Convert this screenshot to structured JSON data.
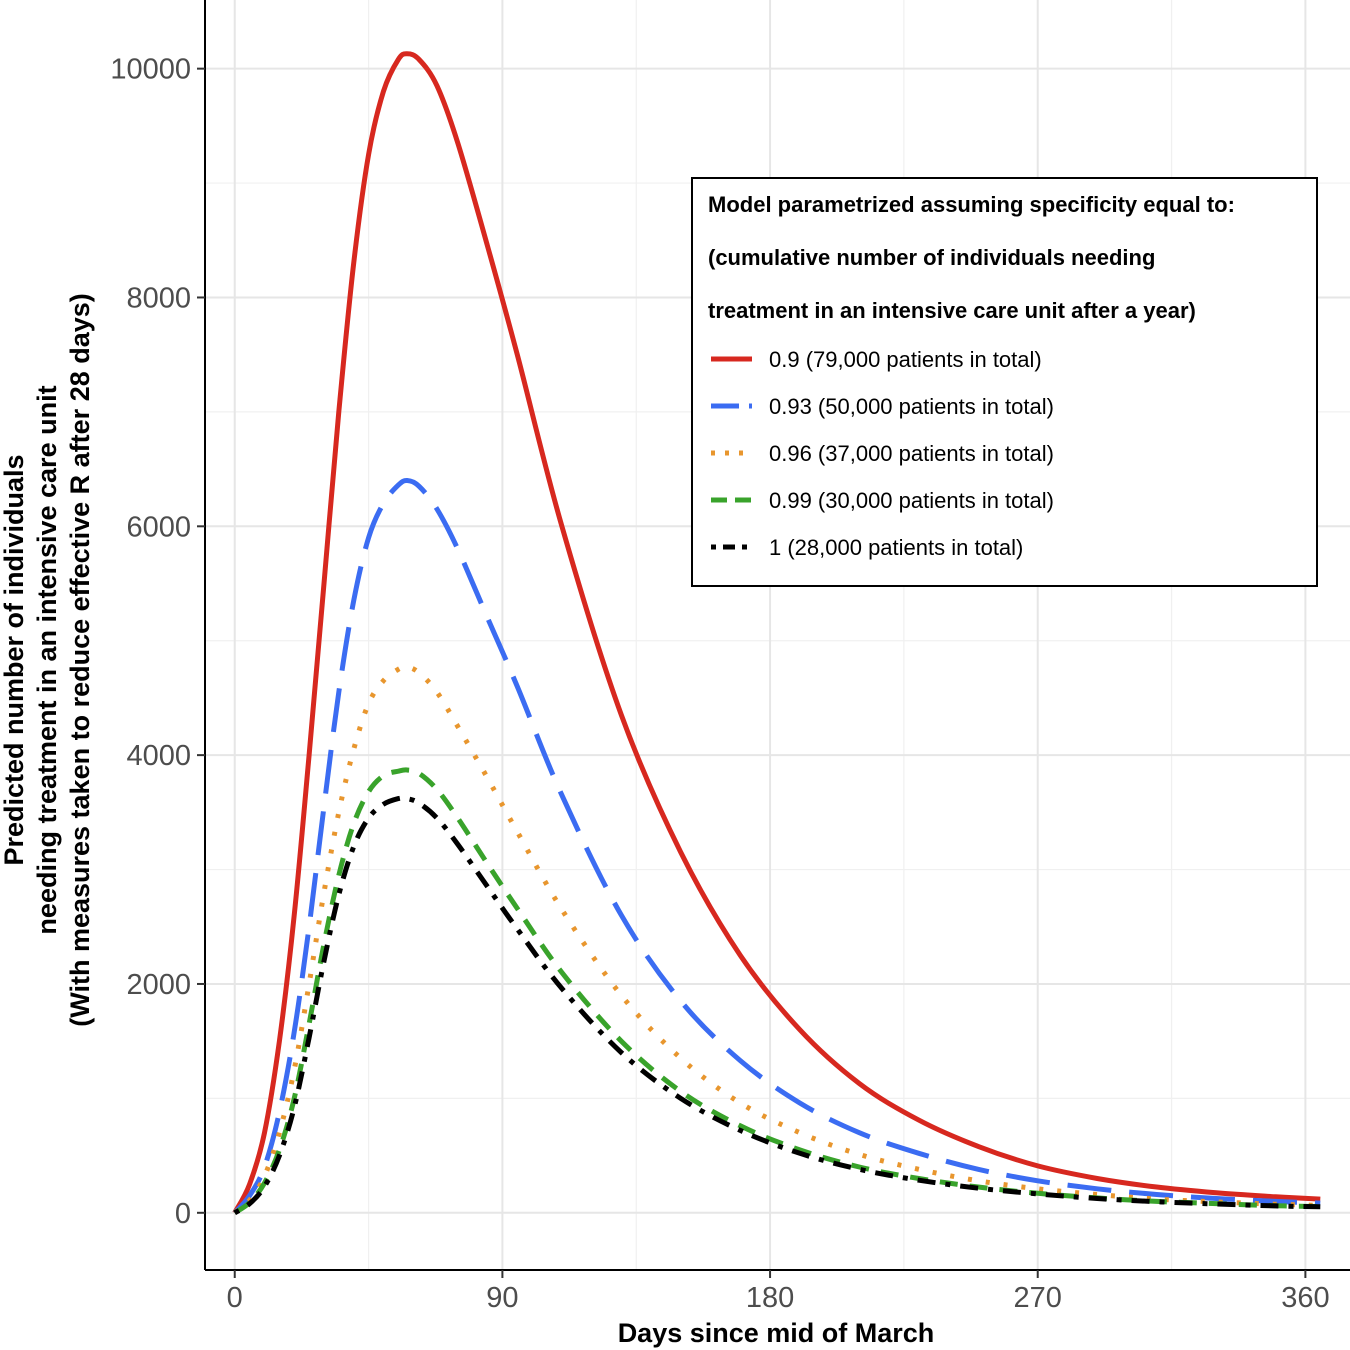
{
  "chart_data": {
    "type": "line",
    "xlabel": "Days since mid of March",
    "ylabel_lines": [
      "Predicted number of individuals",
      "needing treatment in an intensive care unit",
      "(With measures taken to reduce effective R after 28 days)"
    ],
    "xlim": [
      -10,
      375
    ],
    "ylim": [
      -500,
      10600
    ],
    "x_ticks": [
      0,
      90,
      180,
      270,
      360
    ],
    "x_tick_labels": [
      "0",
      "90",
      "180",
      "270",
      "360"
    ],
    "y_ticks": [
      0,
      2000,
      4000,
      6000,
      8000,
      10000
    ],
    "y_tick_labels": [
      "0",
      "2000",
      "4000",
      "6000",
      "8000",
      "10000"
    ],
    "grid": true,
    "legend": {
      "position": "top-right",
      "title_lines": [
        "Model parametrized assuming specificity equal to:",
        "(cumulative number of individuals needing",
        "treatment in an intensive care unit after a year)"
      ]
    },
    "series": [
      {
        "name": "0.9 (79,000 patients in total)",
        "color": "#d7281f",
        "dash": "solid",
        "points": [
          [
            0,
            0
          ],
          [
            5,
            250
          ],
          [
            10,
            700
          ],
          [
            15,
            1500
          ],
          [
            20,
            2600
          ],
          [
            25,
            4000
          ],
          [
            30,
            5500
          ],
          [
            35,
            7000
          ],
          [
            40,
            8300
          ],
          [
            45,
            9250
          ],
          [
            50,
            9800
          ],
          [
            55,
            10080
          ],
          [
            58,
            10130
          ],
          [
            62,
            10080
          ],
          [
            68,
            9850
          ],
          [
            75,
            9350
          ],
          [
            85,
            8450
          ],
          [
            95,
            7500
          ],
          [
            110,
            6000
          ],
          [
            130,
            4350
          ],
          [
            150,
            3150
          ],
          [
            170,
            2250
          ],
          [
            190,
            1600
          ],
          [
            210,
            1130
          ],
          [
            230,
            810
          ],
          [
            250,
            580
          ],
          [
            270,
            410
          ],
          [
            290,
            300
          ],
          [
            310,
            225
          ],
          [
            330,
            175
          ],
          [
            350,
            140
          ],
          [
            365,
            120
          ]
        ]
      },
      {
        "name": "0.93 (50,000 patients in total)",
        "color": "#3b6cf2",
        "dash": "long-dash",
        "points": [
          [
            0,
            0
          ],
          [
            5,
            150
          ],
          [
            10,
            400
          ],
          [
            15,
            880
          ],
          [
            20,
            1580
          ],
          [
            25,
            2500
          ],
          [
            30,
            3550
          ],
          [
            35,
            4550
          ],
          [
            40,
            5350
          ],
          [
            45,
            5900
          ],
          [
            50,
            6200
          ],
          [
            55,
            6360
          ],
          [
            58,
            6400
          ],
          [
            62,
            6350
          ],
          [
            68,
            6150
          ],
          [
            75,
            5800
          ],
          [
            85,
            5200
          ],
          [
            95,
            4600
          ],
          [
            110,
            3650
          ],
          [
            130,
            2600
          ],
          [
            150,
            1850
          ],
          [
            170,
            1330
          ],
          [
            190,
            960
          ],
          [
            210,
            700
          ],
          [
            230,
            520
          ],
          [
            250,
            380
          ],
          [
            270,
            280
          ],
          [
            290,
            210
          ],
          [
            310,
            160
          ],
          [
            330,
            125
          ],
          [
            350,
            100
          ],
          [
            365,
            85
          ]
        ]
      },
      {
        "name": "0.96 (37,000 patients in total)",
        "color": "#e8962e",
        "dash": "dotted",
        "points": [
          [
            0,
            0
          ],
          [
            5,
            110
          ],
          [
            10,
            320
          ],
          [
            15,
            700
          ],
          [
            20,
            1250
          ],
          [
            25,
            2000
          ],
          [
            30,
            2800
          ],
          [
            35,
            3500
          ],
          [
            40,
            4050
          ],
          [
            45,
            4450
          ],
          [
            50,
            4650
          ],
          [
            55,
            4750
          ],
          [
            58,
            4770
          ],
          [
            62,
            4720
          ],
          [
            68,
            4550
          ],
          [
            75,
            4250
          ],
          [
            85,
            3800
          ],
          [
            95,
            3330
          ],
          [
            110,
            2650
          ],
          [
            130,
            1900
          ],
          [
            150,
            1350
          ],
          [
            170,
            960
          ],
          [
            190,
            700
          ],
          [
            210,
            510
          ],
          [
            230,
            380
          ],
          [
            250,
            280
          ],
          [
            270,
            210
          ],
          [
            290,
            160
          ],
          [
            310,
            120
          ],
          [
            330,
            95
          ],
          [
            350,
            75
          ],
          [
            365,
            65
          ]
        ]
      },
      {
        "name": "0.99 (30,000 patients in total)",
        "color": "#39a32b",
        "dash": "dashed",
        "points": [
          [
            0,
            0
          ],
          [
            5,
            90
          ],
          [
            10,
            260
          ],
          [
            15,
            550
          ],
          [
            20,
            1000
          ],
          [
            25,
            1650
          ],
          [
            30,
            2350
          ],
          [
            35,
            2950
          ],
          [
            40,
            3400
          ],
          [
            45,
            3680
          ],
          [
            50,
            3820
          ],
          [
            55,
            3860
          ],
          [
            58,
            3870
          ],
          [
            62,
            3840
          ],
          [
            68,
            3700
          ],
          [
            75,
            3450
          ],
          [
            85,
            3050
          ],
          [
            95,
            2660
          ],
          [
            110,
            2100
          ],
          [
            130,
            1500
          ],
          [
            150,
            1060
          ],
          [
            170,
            760
          ],
          [
            190,
            550
          ],
          [
            210,
            400
          ],
          [
            230,
            300
          ],
          [
            250,
            225
          ],
          [
            270,
            170
          ],
          [
            290,
            130
          ],
          [
            310,
            100
          ],
          [
            330,
            80
          ],
          [
            350,
            62
          ],
          [
            365,
            55
          ]
        ]
      },
      {
        "name": "1 (28,000 patients in total)",
        "color": "#000000",
        "dash": "dot-dash",
        "points": [
          [
            0,
            0
          ],
          [
            5,
            80
          ],
          [
            10,
            230
          ],
          [
            15,
            500
          ],
          [
            20,
            920
          ],
          [
            25,
            1530
          ],
          [
            30,
            2200
          ],
          [
            35,
            2780
          ],
          [
            40,
            3200
          ],
          [
            45,
            3450
          ],
          [
            50,
            3570
          ],
          [
            55,
            3620
          ],
          [
            58,
            3620
          ],
          [
            62,
            3580
          ],
          [
            68,
            3450
          ],
          [
            75,
            3220
          ],
          [
            85,
            2850
          ],
          [
            95,
            2480
          ],
          [
            110,
            1960
          ],
          [
            130,
            1400
          ],
          [
            150,
            1000
          ],
          [
            170,
            720
          ],
          [
            190,
            520
          ],
          [
            210,
            380
          ],
          [
            230,
            285
          ],
          [
            250,
            215
          ],
          [
            270,
            165
          ],
          [
            290,
            125
          ],
          [
            310,
            97
          ],
          [
            330,
            77
          ],
          [
            350,
            60
          ],
          [
            365,
            52
          ]
        ]
      }
    ]
  }
}
